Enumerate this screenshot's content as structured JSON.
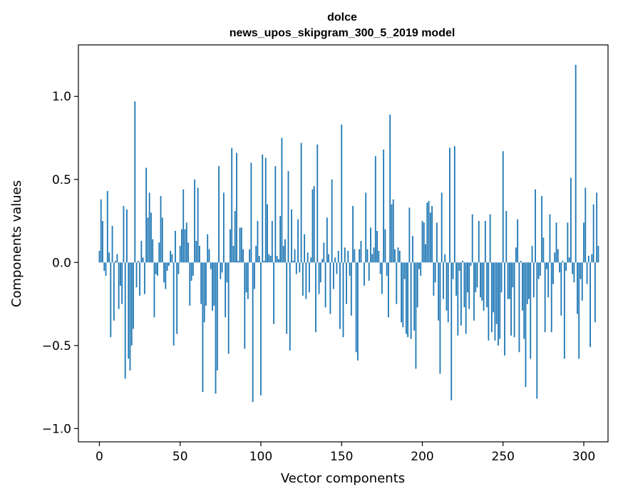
{
  "chart_data": {
    "type": "bar",
    "title": "dolce",
    "subtitle": "news_upos_skipgram_300_5_2019 model",
    "xlabel": "Vector components",
    "ylabel": "Components values",
    "xlim": [
      -13,
      315
    ],
    "ylim": [
      -1.08,
      1.31
    ],
    "xticks": [
      0,
      50,
      100,
      150,
      200,
      250,
      300
    ],
    "xtick_labels": [
      "0",
      "50",
      "100",
      "150",
      "200",
      "250",
      "300"
    ],
    "yticks": [
      -1.0,
      -0.5,
      0.0,
      0.5,
      1.0
    ],
    "ytick_labels": [
      "−1.0",
      "−0.5",
      "0.0",
      "0.5",
      "1.0"
    ],
    "color": "#1f77b4",
    "values": [
      0.07,
      0.38,
      0.25,
      -0.05,
      -0.08,
      0.43,
      0.06,
      -0.45,
      0.22,
      -0.35,
      0.01,
      0.05,
      -0.28,
      -0.14,
      -0.25,
      0.34,
      -0.7,
      0.32,
      -0.58,
      -0.65,
      -0.5,
      -0.4,
      0.97,
      -0.15,
      0.01,
      -0.2,
      0.13,
      0.03,
      -0.19,
      0.57,
      0.27,
      0.42,
      0.3,
      0.14,
      -0.33,
      -0.07,
      -0.08,
      0.12,
      0.4,
      0.27,
      -0.12,
      -0.16,
      -0.05,
      -0.02,
      0.07,
      0.05,
      -0.5,
      0.19,
      -0.43,
      -0.07,
      0.1,
      0.2,
      0.44,
      0.2,
      0.24,
      0.12,
      -0.26,
      -0.11,
      -0.08,
      0.5,
      0.13,
      0.45,
      0.1,
      -0.25,
      -0.78,
      -0.36,
      -0.26,
      0.17,
      0.08,
      -0.04,
      -0.29,
      -0.26,
      -0.79,
      -0.65,
      0.58,
      -0.1,
      -0.06,
      0.42,
      -0.33,
      -0.12,
      -0.55,
      0.2,
      0.69,
      0.1,
      0.31,
      0.66,
      0.01,
      0.21,
      0.21,
      0.08,
      -0.52,
      -0.18,
      -0.22,
      0.08,
      0.6,
      -0.84,
      -0.16,
      0.1,
      0.25,
      0.04,
      -0.8,
      0.65,
      0.01,
      0.63,
      0.35,
      0.05,
      0.04,
      0.25,
      -0.37,
      0.58,
      0.04,
      0.02,
      0.28,
      0.75,
      0.1,
      0.14,
      -0.43,
      0.55,
      -0.53,
      0.32,
      0.01,
      0.08,
      -0.07,
      0.26,
      -0.06,
      0.72,
      -0.2,
      0.17,
      -0.22,
      0.06,
      -0.18,
      0.03,
      0.44,
      0.46,
      -0.42,
      0.71,
      -0.19,
      -0.12,
      0.02,
      0.12,
      -0.27,
      0.27,
      0.05,
      -0.31,
      0.5,
      -0.16,
      0.03,
      -0.07,
      0.07,
      -0.4,
      0.83,
      -0.45,
      0.09,
      -0.25,
      0.07,
      -0.08,
      -0.32,
      0.34,
      0.08,
      -0.54,
      -0.59,
      0.08,
      0.13,
      0.0,
      -0.14,
      0.42,
      0.08,
      -0.11,
      0.21,
      0.05,
      0.09,
      0.64,
      0.19,
      0.07,
      -0.07,
      -0.19,
      0.68,
      0.2,
      -0.08,
      -0.33,
      0.89,
      0.35,
      0.38,
      0.08,
      -0.25,
      0.09,
      0.07,
      -0.36,
      -0.39,
      -0.1,
      -0.43,
      -0.45,
      0.33,
      -0.46,
      0.16,
      -0.41,
      -0.64,
      -0.27,
      -0.04,
      -0.08,
      0.25,
      0.24,
      0.11,
      0.36,
      0.37,
      0.3,
      0.34,
      -0.2,
      -0.12,
      0.24,
      -0.35,
      -0.67,
      0.42,
      -0.22,
      0.05,
      -0.29,
      -0.36,
      0.69,
      -0.83,
      -0.1,
      0.7,
      -0.2,
      -0.44,
      -0.05,
      -0.38,
      0.01,
      -0.27,
      -0.43,
      -0.18,
      -0.28,
      -0.02,
      0.29,
      -0.35,
      -0.18,
      -0.15,
      0.25,
      -0.21,
      -0.23,
      -0.29,
      0.25,
      -0.27,
      -0.47,
      0.29,
      -0.42,
      -0.3,
      -0.47,
      -0.37,
      -0.5,
      -0.46,
      -0.18,
      0.67,
      -0.56,
      0.31,
      -0.22,
      -0.22,
      -0.44,
      -0.15,
      -0.45,
      0.09,
      0.26,
      -0.54,
      0.01,
      -0.29,
      -0.46,
      -0.75,
      -0.25,
      -0.22,
      -0.58,
      0.1,
      -0.21,
      0.44,
      -0.82,
      -0.1,
      -0.08,
      0.4,
      0.15,
      -0.42,
      -0.04,
      -0.21,
      0.29,
      -0.42,
      -0.13,
      0.06,
      0.24,
      0.08,
      -0.06,
      -0.32,
      0.01,
      -0.58,
      -0.05,
      0.24,
      0.03,
      0.51,
      -0.07,
      -0.12,
      1.19,
      -0.31,
      -0.58,
      -0.1,
      -0.23,
      0.24,
      0.45,
      -0.13,
      0.04,
      -0.51,
      0.05,
      0.35,
      -0.36,
      0.42,
      0.1
    ]
  }
}
